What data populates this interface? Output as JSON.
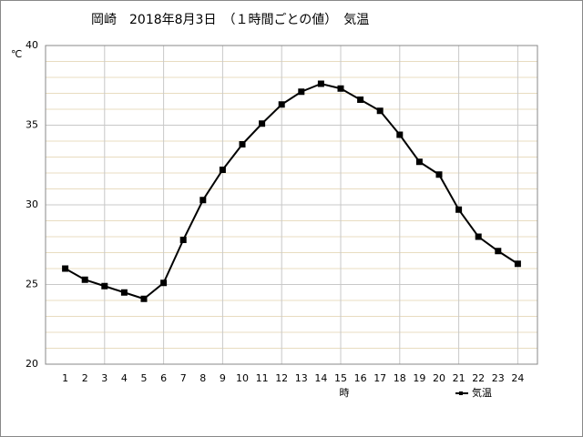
{
  "chart_data": {
    "type": "line",
    "title": "岡崎　2018年8月3日　（１時間ごとの値）　気温",
    "y_unit": "℃",
    "x_label": "時",
    "x": [
      1,
      2,
      3,
      4,
      5,
      6,
      7,
      8,
      9,
      10,
      11,
      12,
      13,
      14,
      15,
      16,
      17,
      18,
      19,
      20,
      21,
      22,
      23,
      24
    ],
    "series": [
      {
        "name": "気温",
        "color": "#000000",
        "values": [
          26.0,
          25.3,
          24.9,
          24.5,
          24.1,
          25.1,
          27.8,
          30.3,
          32.2,
          33.8,
          35.1,
          36.3,
          37.1,
          37.6,
          37.3,
          36.6,
          35.9,
          34.4,
          32.7,
          31.9,
          29.7,
          28.0,
          27.1,
          26.3
        ]
      }
    ],
    "xlim": [
      0,
      25
    ],
    "xticks": [
      1,
      2,
      3,
      4,
      5,
      6,
      7,
      8,
      9,
      10,
      11,
      12,
      13,
      14,
      15,
      16,
      17,
      18,
      19,
      20,
      21,
      22,
      23,
      24
    ],
    "ylim": [
      20,
      40
    ],
    "yticks": [
      20,
      25,
      30,
      35,
      40
    ],
    "grid": true,
    "legend": "bottom-right"
  }
}
